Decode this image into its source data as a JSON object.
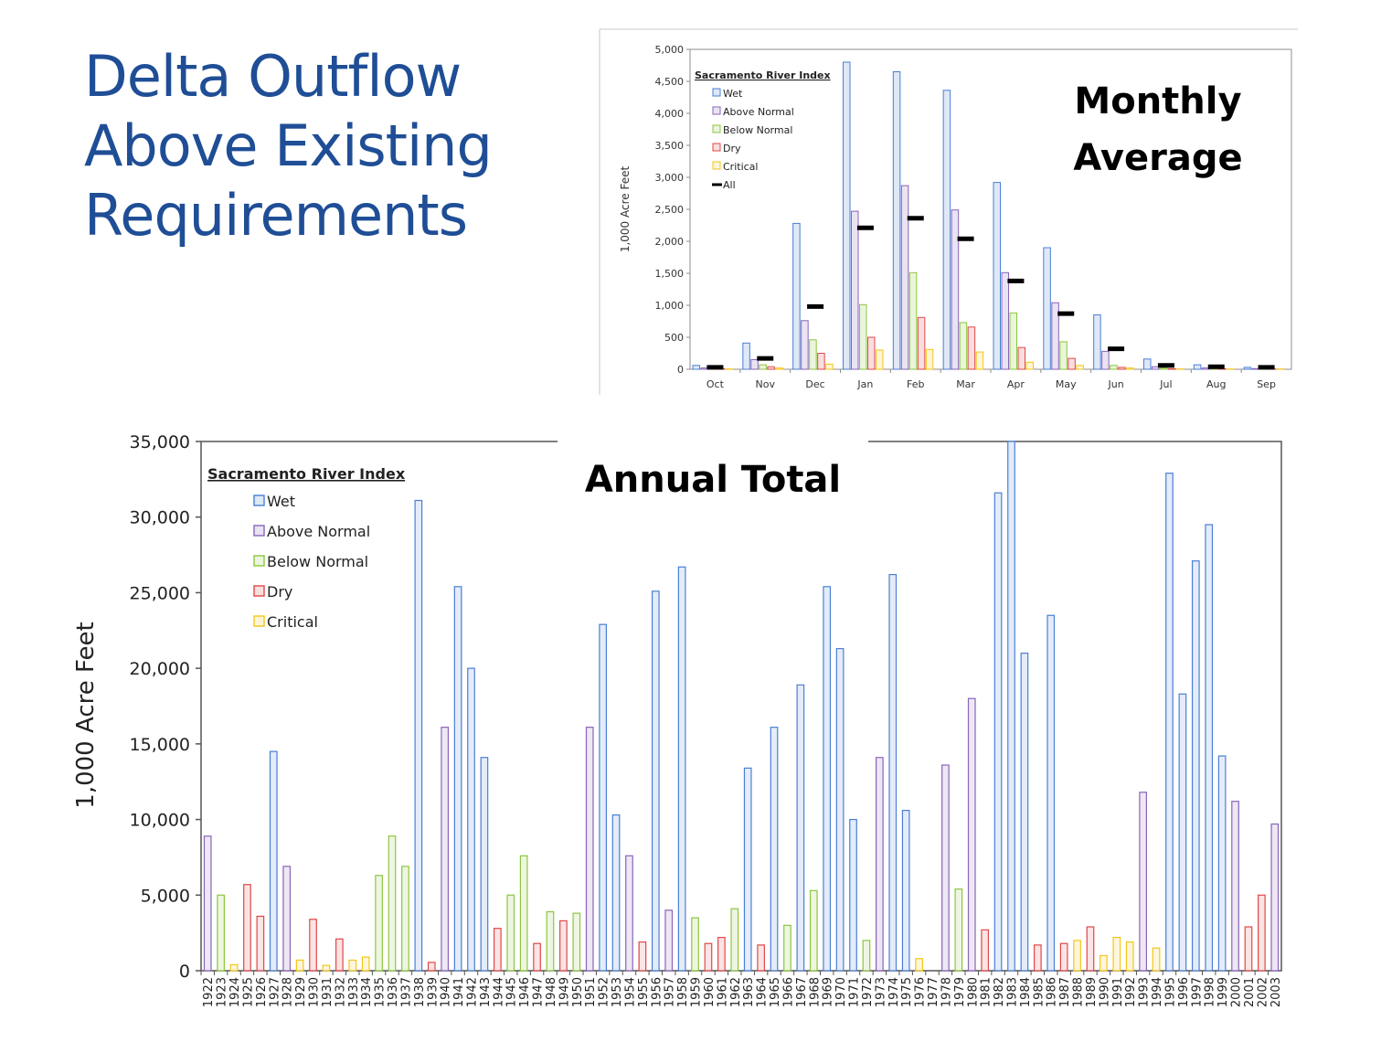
{
  "slide": {
    "title_lines": [
      "Delta Outflow",
      "Above Existing",
      "Requirements"
    ]
  },
  "colors": {
    "Wet": "#4a7fd4",
    "Above Normal": "#8a64b8",
    "Below Normal": "#8cc63f",
    "Dry": "#e0484a",
    "Critical": "#f5c518",
    "All": "#000000",
    "title": "#1f4e96"
  },
  "chart_data": [
    {
      "type": "bar",
      "title": "Monthly Average",
      "title_lines": [
        "Monthly",
        "Average"
      ],
      "xlabel": "",
      "ylabel": "1,000 Acre Feet",
      "ylim": [
        0,
        5000
      ],
      "yticks": [
        0,
        500,
        1000,
        1500,
        2000,
        2500,
        3000,
        3500,
        4000,
        4500,
        5000
      ],
      "ytick_labels": [
        "0",
        "500",
        "1,000",
        "1,500",
        "2,000",
        "2,500",
        "3,000",
        "3,500",
        "4,000",
        "4,500",
        "5,000"
      ],
      "grid": false,
      "legend_title": "Sacramento River Index",
      "legend_position": "top-left",
      "categories": [
        "Oct",
        "Nov",
        "Dec",
        "Jan",
        "Feb",
        "Mar",
        "Apr",
        "May",
        "Jun",
        "Jul",
        "Aug",
        "Sep"
      ],
      "series": [
        {
          "name": "Wet",
          "values": [
            60,
            410,
            2280,
            4800,
            4650,
            4360,
            2920,
            1900,
            850,
            160,
            70,
            30
          ]
        },
        {
          "name": "Above Normal",
          "values": [
            20,
            150,
            760,
            2470,
            2870,
            2490,
            1510,
            1040,
            280,
            40,
            20,
            10
          ]
        },
        {
          "name": "Below Normal",
          "values": [
            10,
            70,
            460,
            1010,
            1510,
            730,
            880,
            430,
            60,
            20,
            10,
            10
          ]
        },
        {
          "name": "Dry",
          "values": [
            10,
            40,
            250,
            500,
            810,
            660,
            340,
            170,
            30,
            10,
            10,
            5
          ]
        },
        {
          "name": "Critical",
          "values": [
            5,
            20,
            80,
            300,
            310,
            270,
            110,
            60,
            20,
            5,
            5,
            5
          ]
        },
        {
          "name": "All",
          "marker": "dash",
          "values": [
            30,
            170,
            980,
            2210,
            2360,
            2040,
            1380,
            870,
            320,
            60,
            40,
            30
          ]
        }
      ]
    },
    {
      "type": "bar",
      "title": "Annual Total",
      "xlabel": "",
      "ylabel": "1,000  Acre Feet",
      "ylim": [
        0,
        35000
      ],
      "yticks": [
        0,
        5000,
        10000,
        15000,
        20000,
        25000,
        30000,
        35000
      ],
      "ytick_labels": [
        "0",
        "5,000",
        "10,000",
        "15,000",
        "20,000",
        "25,000",
        "30,000",
        "35,000"
      ],
      "grid": false,
      "legend_title": "Sacramento River Index",
      "legend_position": "top-left",
      "legend": [
        "Wet",
        "Above Normal",
        "Below Normal",
        "Dry",
        "Critical"
      ],
      "categories": [
        "1922",
        "1923",
        "1924",
        "1925",
        "1926",
        "1927",
        "1928",
        "1929",
        "1930",
        "1931",
        "1932",
        "1933",
        "1934",
        "1935",
        "1936",
        "1937",
        "1938",
        "1939",
        "1940",
        "1941",
        "1942",
        "1943",
        "1944",
        "1945",
        "1946",
        "1947",
        "1948",
        "1949",
        "1950",
        "1951",
        "1952",
        "1953",
        "1954",
        "1955",
        "1956",
        "1957",
        "1958",
        "1959",
        "1960",
        "1961",
        "1962",
        "1963",
        "1964",
        "1965",
        "1966",
        "1967",
        "1968",
        "1969",
        "1970",
        "1971",
        "1972",
        "1973",
        "1974",
        "1975",
        "1976",
        "1977",
        "1978",
        "1979",
        "1980",
        "1981",
        "1982",
        "1983",
        "1984",
        "1985",
        "1986",
        "1987",
        "1988",
        "1989",
        "1990",
        "1991",
        "1992",
        "1993",
        "1994",
        "1995",
        "1996",
        "1997",
        "1998",
        "1999",
        "2000",
        "2001",
        "2002",
        "2003"
      ],
      "values": [
        8900,
        5000,
        400,
        5700,
        3600,
        14500,
        6900,
        700,
        3400,
        350,
        2100,
        700,
        900,
        6300,
        8900,
        6900,
        31100,
        550,
        16100,
        25400,
        20000,
        14100,
        2800,
        5000,
        7600,
        1800,
        3900,
        3300,
        3800,
        16100,
        22900,
        10300,
        7600,
        1900,
        25100,
        4000,
        26700,
        3500,
        1800,
        2200,
        4100,
        13400,
        1700,
        16100,
        3000,
        18900,
        5300,
        25400,
        21300,
        10000,
        2000,
        14100,
        26200,
        10600,
        800,
        0,
        13600,
        5400,
        18000,
        2700,
        31600,
        35000,
        21000,
        1700,
        23500,
        1800,
        2000,
        2900,
        1000,
        2200,
        1900,
        11800,
        1500,
        32900,
        18300,
        27100,
        29500,
        14200,
        11200,
        2900,
        5000,
        9700
      ],
      "classes": [
        "Above Normal",
        "Below Normal",
        "Critical",
        "Dry",
        "Dry",
        "Wet",
        "Above Normal",
        "Critical",
        "Dry",
        "Critical",
        "Dry",
        "Critical",
        "Critical",
        "Below Normal",
        "Below Normal",
        "Below Normal",
        "Wet",
        "Dry",
        "Above Normal",
        "Wet",
        "Wet",
        "Wet",
        "Dry",
        "Below Normal",
        "Below Normal",
        "Dry",
        "Below Normal",
        "Dry",
        "Below Normal",
        "Above Normal",
        "Wet",
        "Wet",
        "Above Normal",
        "Dry",
        "Wet",
        "Above Normal",
        "Wet",
        "Below Normal",
        "Dry",
        "Dry",
        "Below Normal",
        "Wet",
        "Dry",
        "Wet",
        "Below Normal",
        "Wet",
        "Below Normal",
        "Wet",
        "Wet",
        "Wet",
        "Below Normal",
        "Above Normal",
        "Wet",
        "Wet",
        "Critical",
        "Critical",
        "Above Normal",
        "Below Normal",
        "Above Normal",
        "Dry",
        "Wet",
        "Wet",
        "Wet",
        "Dry",
        "Wet",
        "Dry",
        "Critical",
        "Dry",
        "Critical",
        "Critical",
        "Critical",
        "Above Normal",
        "Critical",
        "Wet",
        "Wet",
        "Wet",
        "Wet",
        "Wet",
        "Above Normal",
        "Dry",
        "Dry",
        "Above Normal"
      ]
    }
  ]
}
